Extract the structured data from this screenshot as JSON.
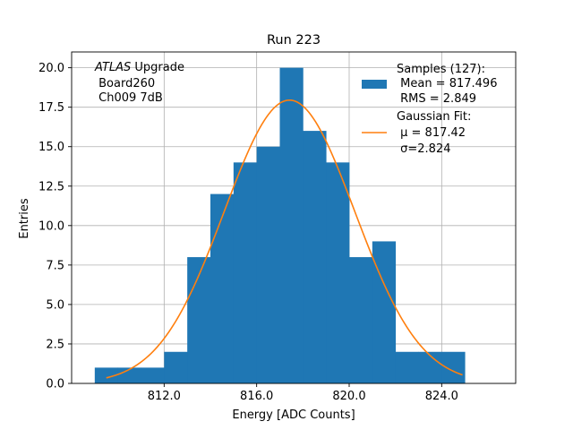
{
  "chart_data": {
    "type": "bar",
    "title": "Run 223",
    "xlabel": "Energy [ADC Counts]",
    "ylabel": "Entries",
    "xlim": [
      808.0,
      827.2
    ],
    "ylim": [
      0,
      21
    ],
    "x_ticks": [
      812.0,
      816.0,
      820.0,
      824.0
    ],
    "x_tick_labels": [
      "812.0",
      "816.0",
      "820.0",
      "824.0"
    ],
    "y_ticks": [
      0,
      2.5,
      5,
      7.5,
      10,
      12.5,
      15,
      17.5,
      20
    ],
    "y_tick_labels": [
      "0.0",
      "2.5",
      "5.0",
      "7.5",
      "10.0",
      "12.5",
      "15.0",
      "17.5",
      "20.0"
    ],
    "grid": true,
    "bin_width": 1,
    "bins": [
      {
        "x0": 809,
        "x1": 810,
        "count": 1
      },
      {
        "x0": 810,
        "x1": 811,
        "count": 1
      },
      {
        "x0": 811,
        "x1": 812,
        "count": 1
      },
      {
        "x0": 812,
        "x1": 813,
        "count": 2
      },
      {
        "x0": 813,
        "x1": 814,
        "count": 8
      },
      {
        "x0": 814,
        "x1": 815,
        "count": 12
      },
      {
        "x0": 815,
        "x1": 816,
        "count": 14
      },
      {
        "x0": 816,
        "x1": 817,
        "count": 15
      },
      {
        "x0": 817,
        "x1": 818,
        "count": 20
      },
      {
        "x0": 818,
        "x1": 819,
        "count": 16
      },
      {
        "x0": 819,
        "x1": 820,
        "count": 14
      },
      {
        "x0": 820,
        "x1": 821,
        "count": 8
      },
      {
        "x0": 821,
        "x1": 822,
        "count": 9
      },
      {
        "x0": 822,
        "x1": 823,
        "count": 2
      },
      {
        "x0": 823,
        "x1": 824,
        "count": 2
      },
      {
        "x0": 824,
        "x1": 825,
        "count": 2
      }
    ],
    "gaussian_fit": {
      "mu": 817.42,
      "sigma": 2.824,
      "amplitude": 17.95,
      "x_range": [
        809.5,
        824.9
      ]
    },
    "colors": {
      "histogram": "#1f77b4",
      "fit": "#ff7f0e",
      "grid": "#b0b0b0"
    },
    "legend": {
      "placement": "top-right",
      "entries": [
        {
          "kind": "patch",
          "lines": [
            "Samples (127):",
            " Mean = 817.496",
            " RMS = 2.849"
          ]
        },
        {
          "kind": "line",
          "lines": [
            "Gaussian Fit:",
            " μ = 817.42",
            " σ=2.824"
          ]
        }
      ]
    },
    "annotation": {
      "italic": "ATLAS",
      "rest": " Upgrade",
      "lines": [
        " Board260",
        " Ch009 7dB"
      ]
    }
  }
}
